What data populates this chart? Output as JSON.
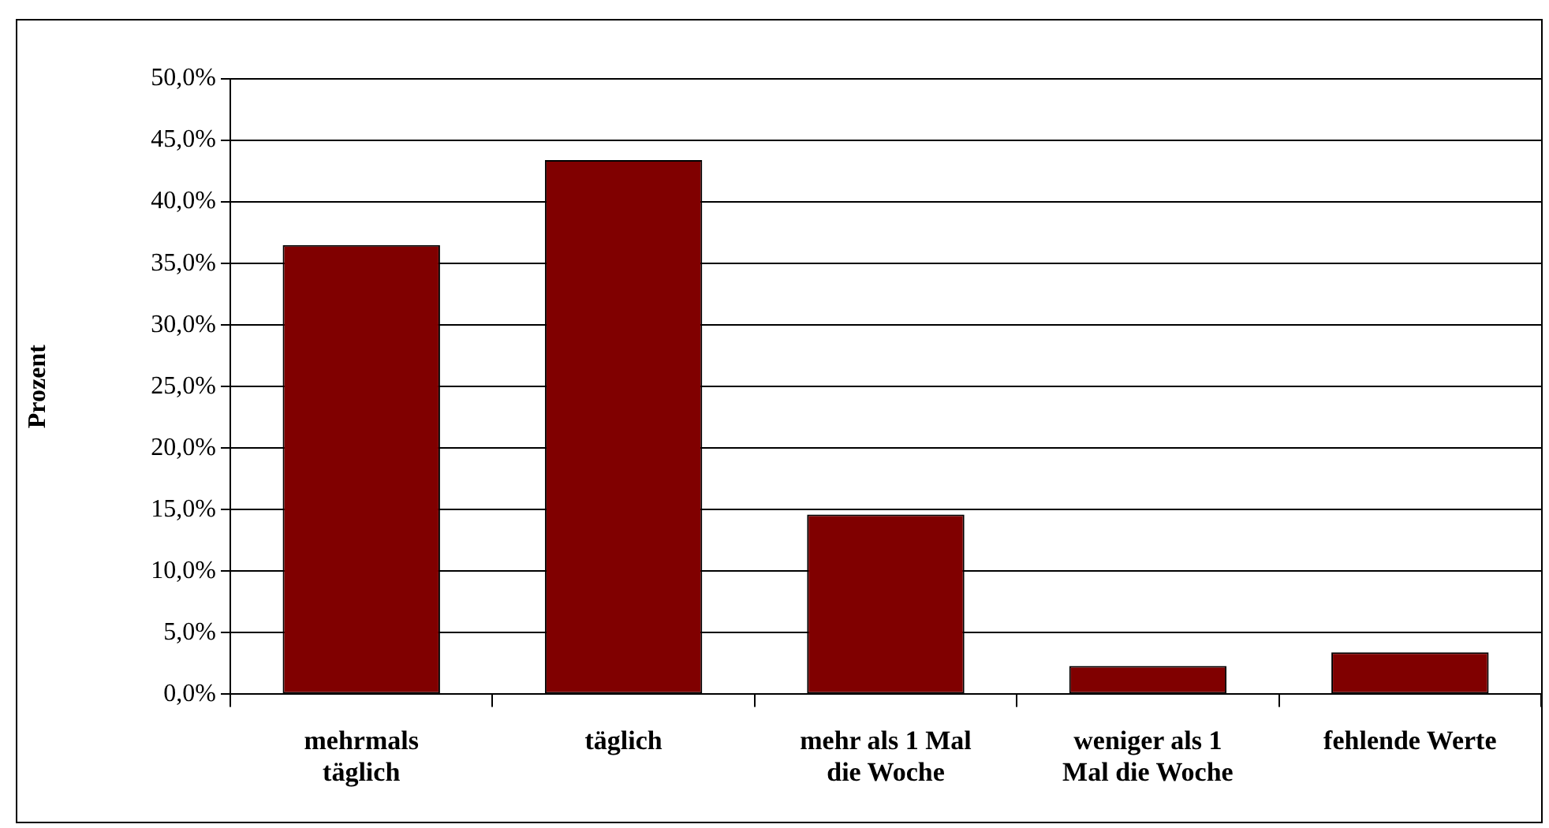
{
  "chart_data": {
    "type": "bar",
    "ylabel": "Prozent",
    "categories": [
      "mehrmals\ntäglich",
      "täglich",
      "mehr als 1 Mal\ndie Woche",
      "weniger als 1\nMal die Woche",
      "fehlende Werte"
    ],
    "values": [
      36.5,
      43.4,
      14.6,
      2.3,
      3.4
    ],
    "color": "#800000",
    "ylim": [
      0,
      50
    ],
    "yticks": [
      {
        "value": 0,
        "label": "0,0%"
      },
      {
        "value": 5,
        "label": "5,0%"
      },
      {
        "value": 10,
        "label": "10,0%"
      },
      {
        "value": 15,
        "label": "15,0%"
      },
      {
        "value": 20,
        "label": "20,0%"
      },
      {
        "value": 25,
        "label": "25,0%"
      },
      {
        "value": 30,
        "label": "30,0%"
      },
      {
        "value": 35,
        "label": "35,0%"
      },
      {
        "value": 40,
        "label": "40,0%"
      },
      {
        "value": 45,
        "label": "45,0%"
      },
      {
        "value": 50,
        "label": "50,0%"
      }
    ],
    "grid": "y"
  }
}
